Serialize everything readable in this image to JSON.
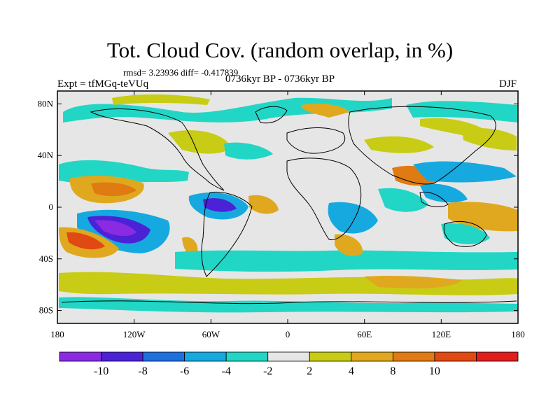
{
  "title": "Tot. Cloud Cov. (random overlap, in %)",
  "stats": "rmsd= 3.23936 diff= -0.417839",
  "expt": "Expt = tfMGq-teVUq",
  "period": "0736kyr BP - 0736kyr BP",
  "season": "DJF",
  "map": {
    "lon_ticks": [
      "180",
      "120W",
      "60W",
      "0",
      "60E",
      "120E",
      "180"
    ],
    "lat_ticks": [
      "80N",
      "40N",
      "0",
      "40S",
      "80S"
    ]
  },
  "colorbar": {
    "labels": [
      "-10",
      "-8",
      "-6",
      "-4",
      "-2",
      "2",
      "4",
      "8",
      "10"
    ],
    "colors": [
      "#8a2be2",
      "#4b22d6",
      "#1e6fe0",
      "#16a9e0",
      "#22d6c6",
      "#e6e6e6",
      "#c8cc14",
      "#e0a81e",
      "#e07a12",
      "#e04a12",
      "#e01e1e"
    ]
  },
  "colors": {
    "background": "#e6e6e6",
    "coastline": "#000000"
  }
}
